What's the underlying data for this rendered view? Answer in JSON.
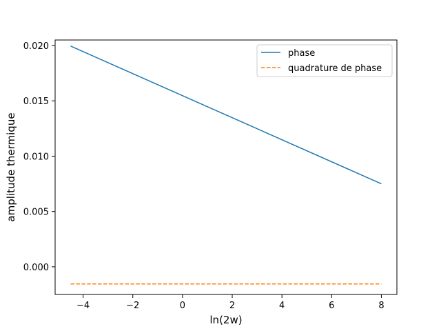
{
  "chart_data": {
    "type": "line",
    "xlabel": "ln(2w)",
    "ylabel": "amplitude thermique",
    "xlim": [
      -5.125,
      8.625
    ],
    "ylim": [
      -0.0025,
      0.0205
    ],
    "xticks": [
      -4,
      -2,
      0,
      2,
      4,
      6,
      8
    ],
    "xtick_labels": [
      "−4",
      "−2",
      "0",
      "2",
      "4",
      "6",
      "8"
    ],
    "yticks": [
      0.0,
      0.005,
      0.01,
      0.015,
      0.02
    ],
    "ytick_labels": [
      "0.000",
      "0.005",
      "0.010",
      "0.015",
      "0.020"
    ],
    "grid": false,
    "legend_position": "upper-right",
    "series": [
      {
        "name": "phase",
        "color": "#1f77b4",
        "style": "solid",
        "x": [
          -4.5,
          8
        ],
        "y": [
          0.01995,
          0.0075
        ]
      },
      {
        "name": "quadrature de phase",
        "color": "#ff7f0e",
        "style": "dashed",
        "x": [
          -4.5,
          8
        ],
        "y": [
          -0.00155,
          -0.00155
        ]
      }
    ]
  }
}
